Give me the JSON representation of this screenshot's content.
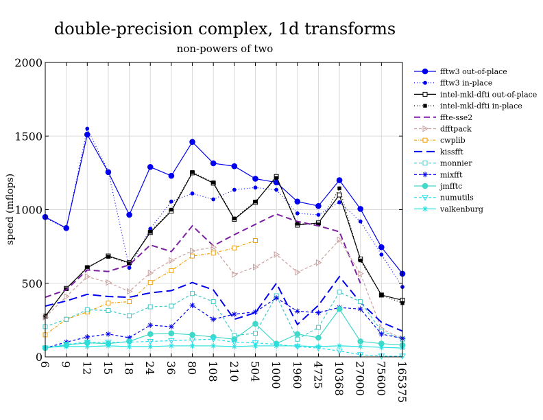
{
  "chart_data": {
    "type": "line",
    "title": "double-precision complex, 1d transforms",
    "subtitle": "non-powers of two",
    "xlabel": "",
    "ylabel": "speed (mflops)",
    "ylim": [
      0,
      2000
    ],
    "yticks": [
      0,
      500,
      1000,
      1500,
      2000
    ],
    "grid": true,
    "legend_position": "right",
    "categories": [
      "6",
      "9",
      "12",
      "15",
      "18",
      "24",
      "36",
      "80",
      "108",
      "210",
      "504",
      "1000",
      "1960",
      "4725",
      "10368",
      "27000",
      "75600",
      "165375"
    ],
    "series": [
      {
        "name": "fftw3 out-of-place",
        "color": "#0000ee",
        "dash": "",
        "marker": "circle-filled",
        "values": [
          950,
          875,
          1510,
          1255,
          965,
          1290,
          1230,
          1460,
          1315,
          1295,
          1210,
          1185,
          1055,
          1025,
          1200,
          1005,
          745,
          565
        ]
      },
      {
        "name": "fftw3 in-place",
        "color": "#0000ee",
        "dash": "1,3",
        "marker": "circle-small",
        "values": [
          945,
          870,
          1550,
          1260,
          605,
          870,
          1055,
          1110,
          1070,
          1135,
          1150,
          1135,
          975,
          965,
          1050,
          920,
          695,
          475
        ]
      },
      {
        "name": "intel-mkl-dfti out-of-place",
        "color": "#000000",
        "dash": "",
        "marker": "square-open",
        "values": [
          275,
          465,
          605,
          685,
          640,
          845,
          990,
          1250,
          1180,
          935,
          1050,
          1225,
          895,
          910,
          1100,
          665,
          420,
          385
        ]
      },
      {
        "name": "intel-mkl-dfti in-place",
        "color": "#000000",
        "dash": "1,3",
        "marker": "square-small",
        "values": [
          280,
          460,
          610,
          680,
          635,
          850,
          1000,
          1255,
          1185,
          940,
          1055,
          1215,
          905,
          900,
          1145,
          655,
          420,
          365
        ]
      },
      {
        "name": "ffte-sse2",
        "color": "#7a1fa0",
        "dash": "9,5",
        "marker": "none",
        "values": [
          405,
          455,
          590,
          580,
          625,
          760,
          715,
          890,
          755,
          830,
          900,
          970,
          920,
          890,
          850,
          500,
          null,
          null
        ]
      },
      {
        "name": "dfftpack",
        "color": "#c8a09c",
        "dash": "4,3",
        "marker": "triangle-right",
        "values": [
          270,
          410,
          545,
          505,
          445,
          570,
          655,
          720,
          745,
          560,
          610,
          695,
          575,
          640,
          795,
          565,
          190,
          125
        ]
      },
      {
        "name": "cwplib",
        "color": "#f0a000",
        "dash": "4,2,1,2",
        "marker": "square-open",
        "values": [
          150,
          255,
          305,
          365,
          375,
          505,
          585,
          685,
          705,
          740,
          790,
          null,
          null,
          null,
          null,
          null,
          null,
          null
        ]
      },
      {
        "name": "kissfft",
        "color": "#0000ee",
        "dash": "12,6",
        "marker": "none",
        "values": [
          345,
          380,
          425,
          410,
          405,
          435,
          450,
          505,
          455,
          255,
          300,
          500,
          220,
          350,
          545,
          370,
          235,
          175
        ]
      },
      {
        "name": "monnier",
        "color": "#40c8c8",
        "dash": "4,3",
        "marker": "square-open",
        "values": [
          205,
          255,
          320,
          315,
          280,
          340,
          345,
          430,
          375,
          145,
          160,
          415,
          120,
          200,
          440,
          375,
          175,
          120
        ]
      },
      {
        "name": "mixfft",
        "color": "#0000ee",
        "dash": "4,3",
        "marker": "star",
        "values": [
          60,
          100,
          135,
          155,
          130,
          215,
          205,
          350,
          255,
          290,
          305,
          400,
          310,
          300,
          335,
          325,
          155,
          125
        ]
      },
      {
        "name": "jmfftc",
        "color": "#40d8c8",
        "dash": "",
        "marker": "circle-filled",
        "values": [
          60,
          80,
          95,
          90,
          105,
          155,
          160,
          150,
          135,
          120,
          225,
          90,
          155,
          130,
          325,
          105,
          90,
          80
        ]
      },
      {
        "name": "numutils",
        "color": "#20e0f0",
        "dash": "4,3",
        "marker": "triangle-down",
        "values": [
          60,
          85,
          100,
          100,
          100,
          105,
          110,
          115,
          120,
          100,
          95,
          85,
          70,
          60,
          40,
          15,
          5,
          5
        ]
      },
      {
        "name": "valkenburg",
        "color": "#20e0e0",
        "dash": "",
        "marker": "star",
        "values": [
          65,
          70,
          70,
          75,
          70,
          70,
          75,
          75,
          75,
          70,
          75,
          75,
          75,
          70,
          75,
          70,
          65,
          60
        ]
      }
    ]
  }
}
